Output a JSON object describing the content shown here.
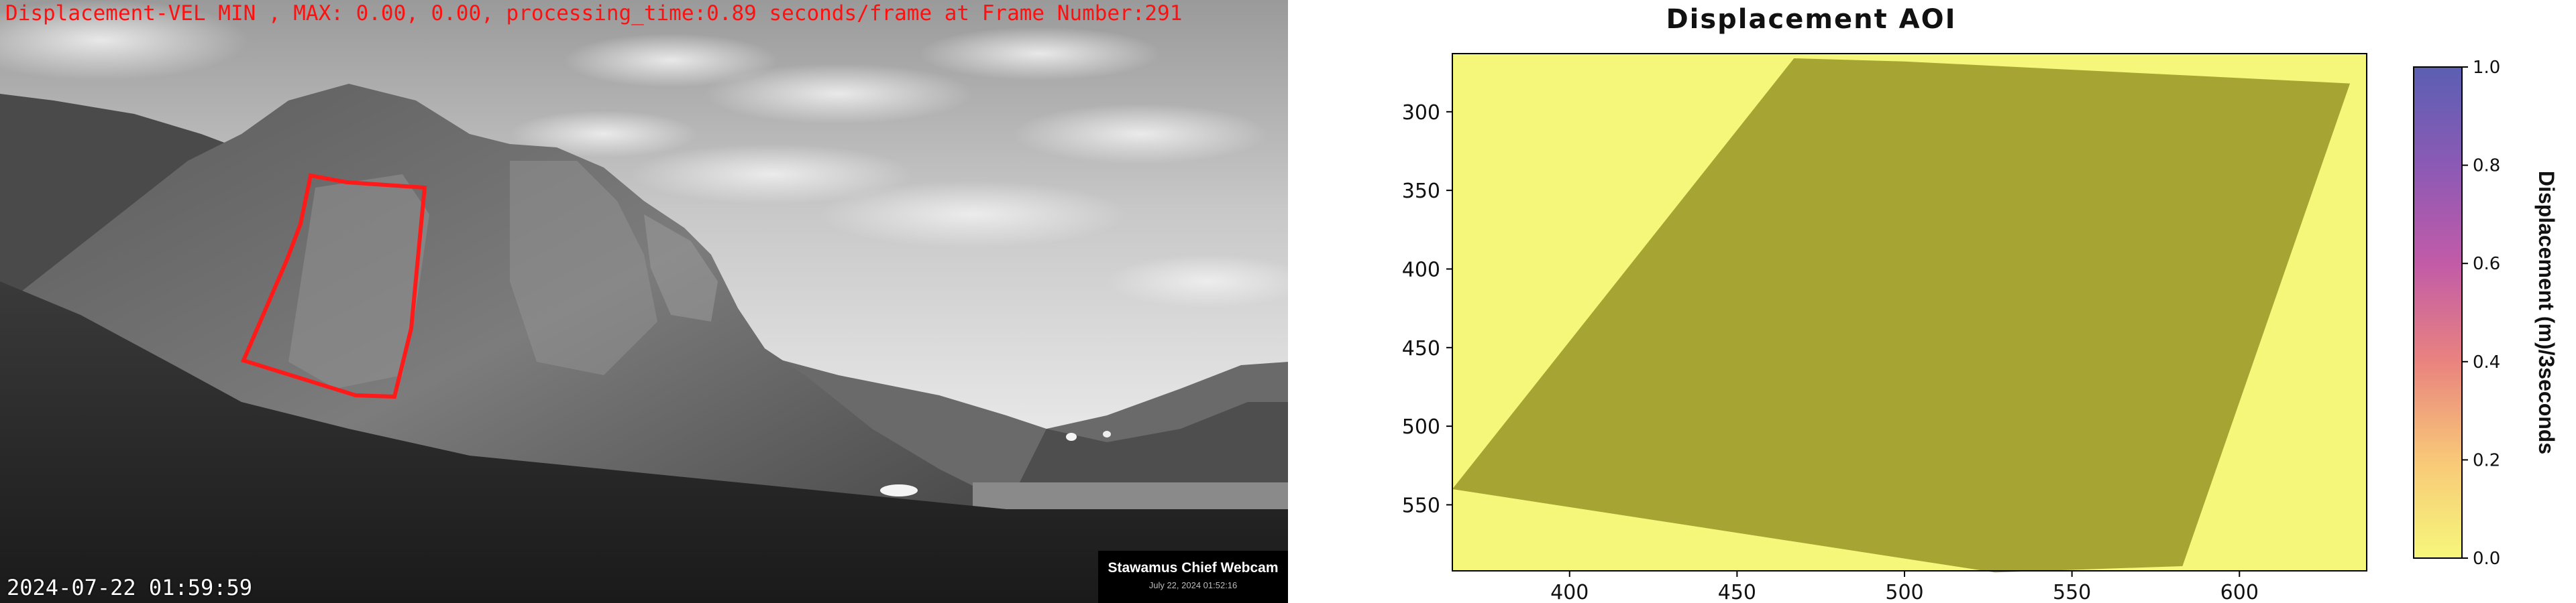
{
  "webcam": {
    "overlay_text": "Displacement-VEL MIN , MAX: 0.00, 0.00, processing_time:0.89 seconds/frame at Frame Number:291",
    "timestamp": "2024-07-22 01:59:59",
    "badge_title": "Stawamus Chief Webcam",
    "badge_date": "July 22, 2024 01:52:16",
    "roi_color": "#ff1a1a"
  },
  "chart_data": {
    "type": "heatmap",
    "title": "Displacement AOI",
    "xlabel": "",
    "ylabel": "",
    "xlim": [
      365,
      638
    ],
    "ylim": [
      592,
      263
    ],
    "x_ticks": [
      400,
      450,
      500,
      550,
      600
    ],
    "y_ticks": [
      300,
      350,
      400,
      450,
      500,
      550
    ],
    "colorbar": {
      "label": "Displacement (m)/3seconds",
      "min": 0.0,
      "max": 1.0,
      "ticks": [
        0.0,
        0.2,
        0.4,
        0.6,
        0.8,
        1.0
      ],
      "tick_labels": [
        "0.0",
        "0.2",
        "0.4",
        "0.6",
        "0.8",
        "1.0"
      ],
      "colors": [
        "#f6f77a",
        "#f8c878",
        "#e9837f",
        "#c25ba8",
        "#8b5ab5",
        "#5b5fb3"
      ]
    },
    "background_color": "#f4f77a",
    "aoi_color": "#a6a432",
    "aoi_polygon": [
      [
        365,
        540
      ],
      [
        467,
        266
      ],
      [
        500,
        268
      ],
      [
        633,
        282
      ],
      [
        583,
        589
      ],
      [
        527,
        593
      ],
      [
        365,
        540
      ]
    ],
    "values_min": 0.0,
    "values_max": 0.0
  }
}
